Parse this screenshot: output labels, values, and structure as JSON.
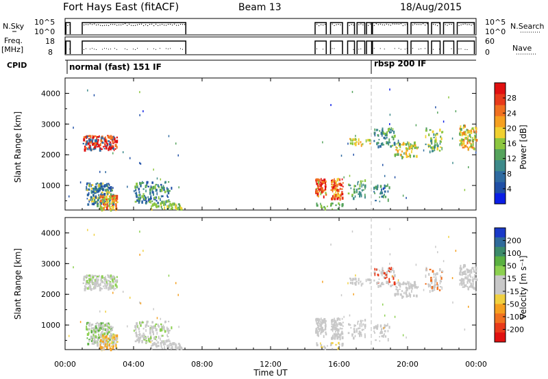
{
  "chart_data": {
    "type": "scatter",
    "title": "Fort Hays East (fitACF)",
    "beam": "Beam 13",
    "date": "18/Aug/2015",
    "xlabel": "Time UT",
    "x_ticks": [
      "00:00",
      "04:00",
      "08:00",
      "12:00",
      "16:00",
      "20:00",
      "00:00"
    ],
    "x_range_hours": [
      0,
      24
    ],
    "header": {
      "nsky": {
        "label": "N.Sky",
        "ticks": [
          "10^5",
          "10^0"
        ],
        "right_label": "N.Search",
        "right_ticks": [
          "10^5",
          "10^0"
        ]
      },
      "freq": {
        "label_line1": "Freq.",
        "label_line2": "[MHz]",
        "ticks": [
          "18",
          "8"
        ],
        "range": [
          8,
          18
        ],
        "right_label": "Nave",
        "right_ticks": [
          "60",
          "0"
        ],
        "right_range": [
          0,
          60
        ]
      },
      "cpid": {
        "label": "CPID",
        "modes": [
          {
            "name": "normal (fast) 151 IF",
            "start_hour": 0.0
          },
          {
            "name": "rbsp 200 IF",
            "start_hour": 17.95
          }
        ]
      },
      "operating_segments_hours": [
        [
          0.05,
          0.3
        ],
        [
          1.0,
          7.05
        ],
        [
          14.6,
          15.25
        ],
        [
          15.5,
          16.2
        ],
        [
          16.5,
          16.9
        ],
        [
          17.05,
          17.5
        ],
        [
          17.6,
          17.9
        ],
        [
          17.95,
          20.0
        ],
        [
          20.2,
          21.2
        ],
        [
          21.4,
          21.9
        ],
        [
          22.1,
          22.7
        ],
        [
          22.9,
          23.9
        ]
      ]
    },
    "panels": [
      {
        "name": "power",
        "ylabel": "Slant Range [km]",
        "y_ticks": [
          1000,
          2000,
          3000,
          4000
        ],
        "ylim": [
          200,
          4500
        ],
        "colorbar_label": "Power [dB]",
        "colorbar_ticks": [
          4,
          8,
          12,
          16,
          20,
          24,
          28
        ],
        "colorbar_range": [
          0,
          32
        ],
        "colorbar_colors": [
          "#0a1ee6",
          "#1f4fa6",
          "#2e6aa0",
          "#3d8a8a",
          "#55a35c",
          "#8cc63f",
          "#f0d030",
          "#f5a020",
          "#f07020",
          "#e83a1a",
          "#e01010"
        ]
      },
      {
        "name": "velocity",
        "ylabel": "Slant Range [km]",
        "y_ticks": [
          1000,
          2000,
          3000,
          4000
        ],
        "ylim": [
          200,
          4500
        ],
        "colorbar_label": "Velocity [m s⁻¹]",
        "colorbar_ticks": [
          "200",
          "100",
          "50",
          "15",
          "-15",
          "-50",
          "-100",
          "-200"
        ],
        "colorbar_colors": [
          "#1a3ac8",
          "#2f6a9a",
          "#3c8a6a",
          "#5ab040",
          "#8cd050",
          "#c8c8c8",
          "#c8c8c8",
          "#f0d040",
          "#f5a020",
          "#f07020",
          "#e83a1a",
          "#e01010"
        ]
      }
    ],
    "scatter_regions": [
      {
        "t0": 1.0,
        "t1": 3.0,
        "r0": 2200,
        "r1": 2650,
        "pw": [
          2,
          8,
          12,
          16
        ],
        "vl": [
          5,
          5,
          4,
          6
        ],
        "n": 150
      },
      {
        "t0": 1.2,
        "t1": 2.8,
        "r0": 400,
        "r1": 1100,
        "pw": [
          1,
          2,
          3,
          4,
          6
        ],
        "vl": [
          5,
          5,
          4,
          3
        ],
        "n": 170
      },
      {
        "t0": 2.0,
        "t1": 3.0,
        "r0": 250,
        "r1": 700,
        "pw": [
          5,
          6,
          7,
          8,
          9
        ],
        "vl": [
          6,
          7,
          8
        ],
        "n": 80
      },
      {
        "t0": 4.0,
        "t1": 6.2,
        "r0": 400,
        "r1": 1150,
        "pw": [
          1,
          2,
          3,
          4,
          5
        ],
        "vl": [
          5,
          5,
          4
        ],
        "n": 140
      },
      {
        "t0": 5.0,
        "t1": 6.8,
        "r0": 250,
        "r1": 450,
        "pw": [
          4,
          5,
          6
        ],
        "vl": [
          5,
          6
        ],
        "n": 50
      },
      {
        "t0": 14.6,
        "t1": 15.2,
        "r0": 650,
        "r1": 1250,
        "pw": [
          7,
          8,
          9,
          10,
          5
        ],
        "vl": [
          5,
          5,
          6
        ],
        "n": 60
      },
      {
        "t0": 15.5,
        "t1": 16.2,
        "r0": 600,
        "r1": 1250,
        "pw": [
          7,
          8,
          9,
          10,
          6
        ],
        "vl": [
          5,
          5,
          6
        ],
        "n": 70
      },
      {
        "t0": 16.5,
        "t1": 17.5,
        "r0": 600,
        "r1": 1200,
        "pw": [
          3,
          4,
          5
        ],
        "vl": [
          5,
          5
        ],
        "n": 40
      },
      {
        "t0": 16.6,
        "t1": 17.8,
        "r0": 2350,
        "r1": 2550,
        "pw": [
          5,
          6,
          7
        ],
        "vl": [
          5,
          5
        ],
        "n": 25
      },
      {
        "t0": 18.0,
        "t1": 19.2,
        "r0": 2300,
        "r1": 2900,
        "pw": [
          2,
          3,
          4,
          5
        ],
        "vl": [
          5,
          5,
          10
        ],
        "n": 60
      },
      {
        "t0": 19.2,
        "t1": 20.6,
        "r0": 1950,
        "r1": 2450,
        "pw": [
          5,
          6,
          7,
          4
        ],
        "vl": [
          5,
          5
        ],
        "n": 70
      },
      {
        "t0": 21.0,
        "t1": 22.0,
        "r0": 2100,
        "r1": 2900,
        "pw": [
          4,
          5,
          6,
          3
        ],
        "vl": [
          5,
          5,
          9
        ],
        "n": 50
      },
      {
        "t0": 23.0,
        "t1": 24.0,
        "r0": 2200,
        "r1": 3000,
        "pw": [
          6,
          7,
          8,
          4,
          5
        ],
        "vl": [
          5,
          5,
          6
        ],
        "n": 90
      },
      {
        "t0": 18.0,
        "t1": 19.0,
        "r0": 500,
        "r1": 1100,
        "pw": [
          2,
          3,
          4
        ],
        "vl": [
          5
        ],
        "n": 30
      },
      {
        "t0": 14.6,
        "t1": 16.2,
        "r0": 250,
        "r1": 450,
        "pw": [
          4,
          5
        ],
        "vl": [
          6,
          7
        ],
        "n": 20
      }
    ]
  }
}
